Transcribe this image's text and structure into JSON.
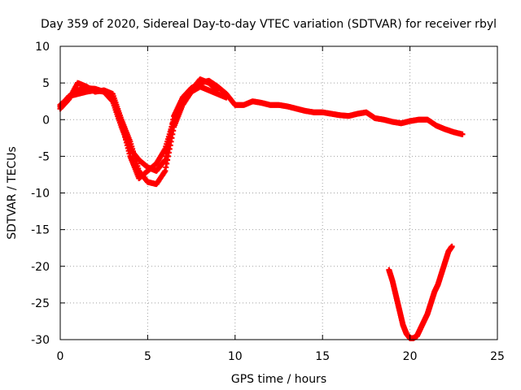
{
  "chart_data": {
    "type": "scatter",
    "title": "Day 359 of 2020, Sidereal Day-to-day VTEC variation (SDTVAR) for receiver rbyl",
    "xlabel": "GPS time / hours",
    "ylabel": "SDTVAR / TECUs",
    "xlim": [
      0,
      25
    ],
    "ylim": [
      -30,
      10
    ],
    "xticks": [
      0,
      5,
      10,
      15,
      20,
      25
    ],
    "yticks": [
      -30,
      -25,
      -20,
      -15,
      -10,
      -5,
      0,
      5,
      10
    ],
    "grid": true,
    "marker": "+",
    "color": "#ff0000",
    "series": [
      {
        "name": "track-a",
        "x": [
          0.0,
          0.5,
          1.0,
          1.5,
          2.0,
          2.5,
          3.0,
          3.5,
          4.0,
          4.5,
          5.0,
          5.5,
          6.0,
          6.5,
          7.0,
          7.5,
          8.0,
          8.5,
          9.0,
          9.5,
          10.0,
          10.5,
          11.0,
          11.5,
          12.0,
          12.5,
          13.0,
          13.5,
          14.0,
          14.5,
          15.0,
          15.5,
          16.0,
          16.5,
          17.0,
          17.5,
          18.0,
          18.5,
          19.0,
          19.5,
          20.0,
          20.5,
          21.0,
          21.5,
          22.0,
          22.5,
          23.0
        ],
        "y": [
          2.0,
          3.0,
          4.0,
          4.3,
          4.2,
          3.8,
          2.5,
          -1.0,
          -4.0,
          -5.5,
          -6.5,
          -7.0,
          -5.5,
          0.5,
          3.0,
          4.3,
          5.0,
          5.3,
          4.5,
          3.5,
          2.0,
          2.0,
          2.5,
          2.3,
          2.0,
          2.0,
          1.8,
          1.5,
          1.2,
          1.0,
          1.0,
          0.8,
          0.6,
          0.5,
          0.8,
          1.0,
          0.2,
          0.0,
          -0.3,
          -0.5,
          -0.2,
          0.0,
          0.0,
          -0.8,
          -1.3,
          -1.7,
          -2.0
        ]
      },
      {
        "name": "track-b",
        "x": [
          0.0,
          0.5,
          1.0,
          1.5,
          2.0,
          2.5,
          3.0,
          3.5,
          4.0,
          4.5,
          5.0,
          5.5,
          6.0,
          6.5,
          7.0,
          7.5,
          8.0,
          8.5,
          9.0,
          9.5
        ],
        "y": [
          1.5,
          2.8,
          5.0,
          4.5,
          3.8,
          4.0,
          3.5,
          0.0,
          -3.0,
          -7.0,
          -8.5,
          -8.8,
          -7.0,
          -1.0,
          2.0,
          3.8,
          4.5,
          4.0,
          3.5,
          3.0
        ]
      },
      {
        "name": "track-c",
        "x": [
          0.0,
          0.5,
          1.0,
          1.5,
          2.0,
          2.5,
          3.0,
          3.5,
          4.0,
          4.5,
          5.0,
          5.5,
          6.0,
          6.5,
          7.0,
          7.5,
          8.0,
          8.5,
          9.0
        ],
        "y": [
          1.8,
          3.2,
          3.5,
          3.8,
          4.0,
          3.8,
          3.0,
          -0.5,
          -5.0,
          -8.0,
          -7.0,
          -6.0,
          -4.0,
          0.0,
          3.0,
          4.0,
          5.5,
          5.0,
          4.0
        ]
      },
      {
        "name": "track-d",
        "x": [
          18.8,
          19.0,
          19.2,
          19.4,
          19.6,
          19.8,
          20.0,
          20.2,
          20.4,
          20.6,
          20.8,
          21.0,
          21.2,
          21.4,
          21.6,
          21.8,
          22.0,
          22.2,
          22.4
        ],
        "y": [
          -20.5,
          -22.0,
          -24.0,
          -26.0,
          -28.0,
          -29.2,
          -29.8,
          -29.8,
          -29.5,
          -28.5,
          -27.5,
          -26.5,
          -25.0,
          -23.5,
          -22.5,
          -21.0,
          -19.5,
          -18.0,
          -17.3
        ]
      }
    ]
  }
}
